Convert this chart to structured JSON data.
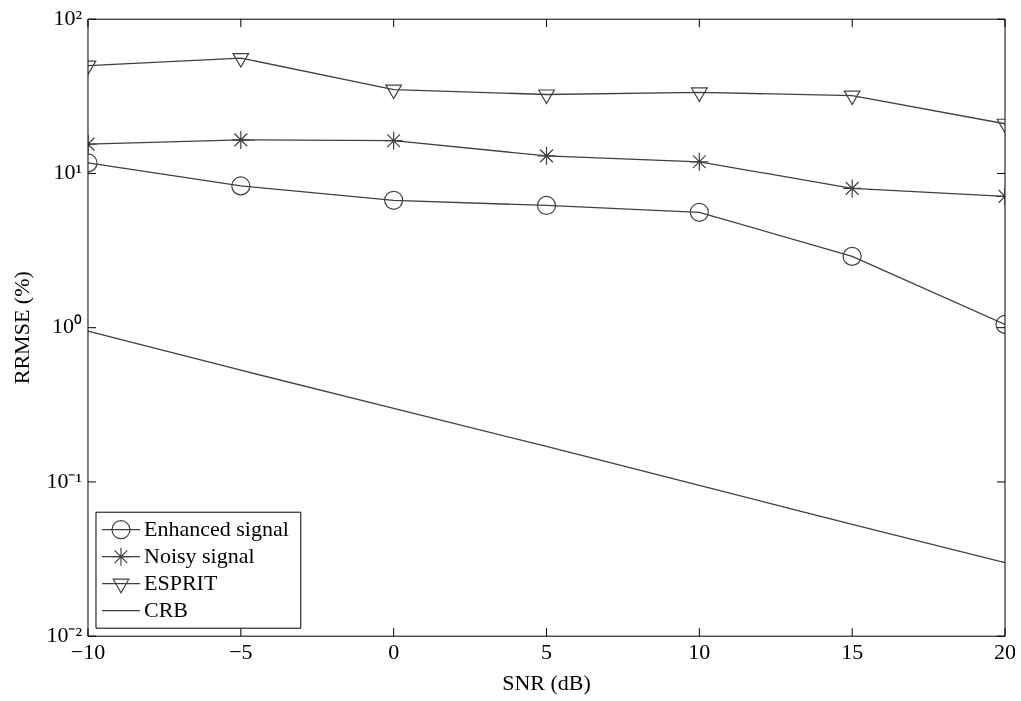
{
  "chart_data": {
    "type": "line",
    "xlabel": "SNR (dB)",
    "ylabel": "RRMSE (%)",
    "x": [
      -10,
      -5,
      0,
      5,
      10,
      15,
      20
    ],
    "series": [
      {
        "name": "Enhanced signal",
        "color": "#404040",
        "marker": "circle",
        "values": [
          11.7,
          8.3,
          6.7,
          6.2,
          5.6,
          2.9,
          1.05
        ]
      },
      {
        "name": "Noisy signal",
        "color": "#404040",
        "marker": "cross",
        "values": [
          15.5,
          16.5,
          16.3,
          13,
          11.9,
          8.0,
          7.1
        ]
      },
      {
        "name": "ESPRIT",
        "color": "#404040",
        "marker": "triangle",
        "values": [
          50,
          56,
          35,
          32.5,
          33.5,
          32,
          21
        ]
      },
      {
        "name": "CRB",
        "color": "#404040",
        "marker": "none",
        "values": [
          0.95,
          0.53,
          0.3,
          0.17,
          0.095,
          0.053,
          0.03
        ]
      }
    ],
    "log": "y",
    "grid": false,
    "legend": "bottom left",
    "line_style": "solid",
    "xlim": [
      -10,
      20
    ],
    "xticks": [
      {
        "value": -10,
        "label": "−10"
      },
      {
        "value": -5,
        "label": "−5"
      },
      0,
      5,
      10,
      15,
      20
    ],
    "ylim": [
      0.01,
      100
    ],
    "yticks": [
      {
        "value": 0.01,
        "label": "10⁻²"
      },
      {
        "value": 0.1,
        "label": "10⁻¹"
      },
      {
        "value": 1,
        "label": "10⁰"
      },
      {
        "value": 10,
        "label": "10¹"
      },
      {
        "value": 100,
        "label": "10²"
      }
    ]
  }
}
